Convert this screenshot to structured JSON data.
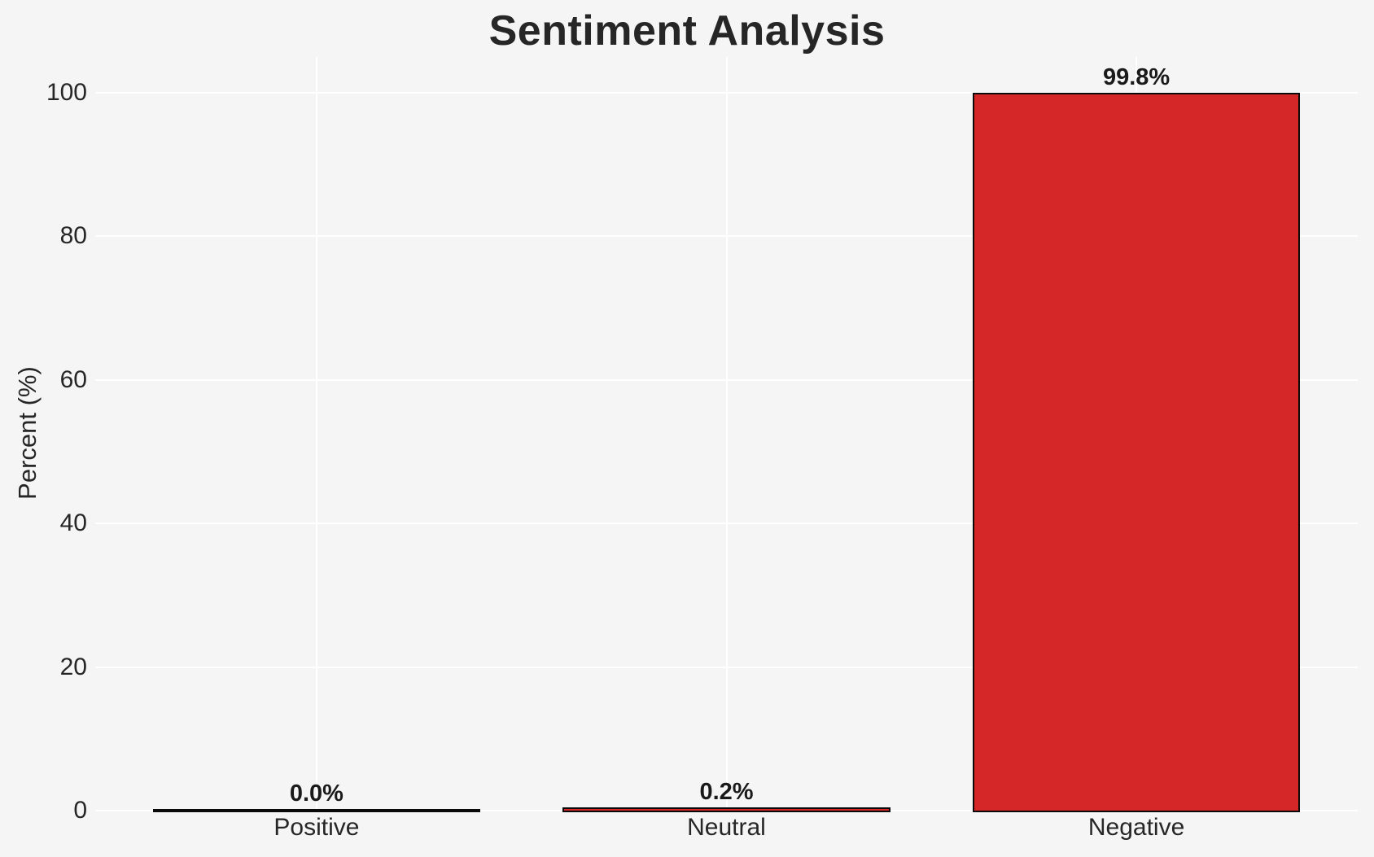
{
  "chart_data": {
    "type": "bar",
    "title": "Sentiment Analysis",
    "xlabel": "",
    "ylabel": "Percent (%)",
    "categories": [
      "Positive",
      "Neutral",
      "Negative"
    ],
    "values": [
      0.0,
      0.2,
      99.8
    ],
    "bar_labels": [
      "0.0%",
      "0.2%",
      "99.8%"
    ],
    "yticks": [
      0,
      20,
      40,
      60,
      80,
      100
    ],
    "ylim": [
      0,
      105
    ],
    "grid": true,
    "legend_position": "none",
    "colors": {
      "bar_fill": "#d62728",
      "bar_edge": "#0a0a0a",
      "figure_background": "#f5f5f5",
      "gridline": "#ffffff",
      "text": "#262626"
    }
  }
}
